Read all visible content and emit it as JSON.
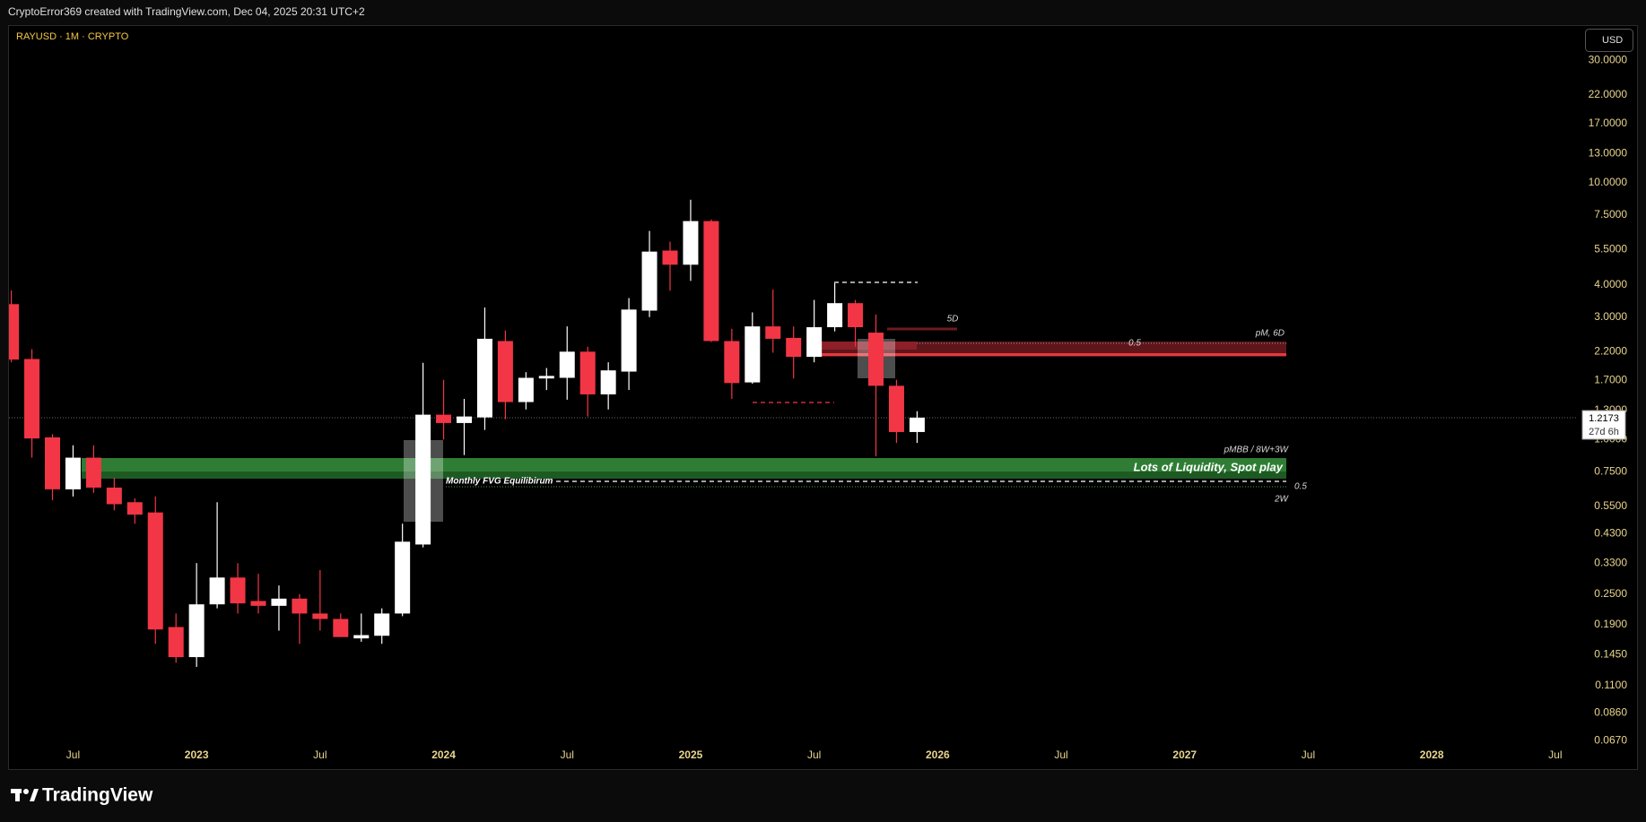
{
  "header": "CryptoError369 created with TradingView.com, Dec 04, 2025 20:31 UTC+2",
  "footer": "TradingView",
  "chart_data": {
    "type": "candlestick",
    "title": "RAYUSD · 1M · CRYPTO",
    "currency": "USD",
    "countdown": "27d 6h",
    "log_scale": true,
    "grid": false,
    "up_color": "#ffffff",
    "down_color": "#f23645",
    "categories": [
      "2022-04",
      "2022-05",
      "2022-06",
      "2022-07",
      "2022-08",
      "2022-09",
      "2022-10",
      "2022-11",
      "2022-12",
      "2023-01",
      "2023-02",
      "2023-03",
      "2023-04",
      "2023-05",
      "2023-06",
      "2023-07",
      "2023-08",
      "2023-09",
      "2023-10",
      "2023-11",
      "2023-12",
      "2024-01",
      "2024-02",
      "2024-03",
      "2024-04",
      "2024-05",
      "2024-06",
      "2024-07",
      "2024-08",
      "2024-09",
      "2024-10",
      "2024-11",
      "2024-12",
      "2025-01",
      "2025-02",
      "2025-03",
      "2025-04",
      "2025-05",
      "2025-06",
      "2025-07",
      "2025-08",
      "2025-09",
      "2025-10",
      "2025-11",
      "2025-12"
    ],
    "open": [
      3.37,
      2.06,
      1.02,
      0.64,
      0.85,
      0.65,
      0.57,
      0.52,
      0.186,
      0.142,
      0.228,
      0.29,
      0.235,
      0.225,
      0.24,
      0.21,
      0.2,
      0.168,
      0.172,
      0.21,
      0.39,
      1.25,
      1.16,
      1.22,
      2.42,
      1.4,
      1.73,
      1.74,
      2.2,
      1.5,
      1.84,
      3.18,
      5.45,
      4.8,
      7.1,
      2.42,
      1.67,
      2.76,
      2.49,
      2.1,
      2.74,
      3.4,
      2.61,
      1.62,
      1.07
    ],
    "high": [
      3.81,
      2.25,
      1.05,
      0.95,
      0.95,
      0.71,
      0.59,
      0.6,
      0.21,
      0.33,
      0.57,
      0.33,
      0.3,
      0.27,
      0.25,
      0.31,
      0.21,
      0.21,
      0.22,
      0.47,
      1.99,
      1.71,
      1.44,
      3.27,
      2.66,
      1.83,
      1.9,
      2.76,
      2.3,
      2.0,
      3.56,
      6.5,
      5.9,
      8.6,
      7.2,
      2.7,
      3.13,
      3.84,
      2.76,
      3.5,
      4.07,
      3.5,
      3.07,
      1.71,
      1.29
    ],
    "low": [
      2.0,
      0.85,
      0.58,
      0.6,
      0.62,
      0.53,
      0.47,
      0.16,
      0.135,
      0.13,
      0.22,
      0.21,
      0.21,
      0.18,
      0.16,
      0.18,
      0.17,
      0.163,
      0.16,
      0.205,
      0.38,
      1.0,
      0.87,
      1.09,
      1.2,
      1.31,
      1.56,
      1.43,
      1.23,
      1.31,
      1.56,
      3.0,
      3.8,
      4.15,
      2.4,
      1.44,
      1.65,
      2.18,
      1.73,
      2.0,
      2.64,
      2.3,
      0.86,
      0.97,
      0.97
    ],
    "close": [
      2.05,
      1.01,
      0.64,
      0.85,
      0.65,
      0.56,
      0.51,
      0.182,
      0.142,
      0.228,
      0.29,
      0.23,
      0.225,
      0.24,
      0.21,
      0.2,
      0.17,
      0.173,
      0.21,
      0.4,
      1.25,
      1.16,
      1.23,
      2.47,
      1.4,
      1.74,
      1.77,
      2.2,
      1.5,
      1.86,
      3.21,
      5.4,
      4.8,
      7.1,
      2.42,
      1.66,
      2.76,
      2.47,
      2.1,
      2.74,
      3.4,
      2.74,
      1.62,
      1.07,
      1.2173
    ],
    "ylim": [
      0.0646,
      41.2
    ],
    "yticks": [
      {
        "value": 30,
        "label": "30.0000"
      },
      {
        "value": 22,
        "label": "22.0000"
      },
      {
        "value": 17,
        "label": "17.0000"
      },
      {
        "value": 13,
        "label": "13.0000"
      },
      {
        "value": 10,
        "label": "10.0000"
      },
      {
        "value": 7.5,
        "label": "7.5000"
      },
      {
        "value": 5.5,
        "label": "5.5000"
      },
      {
        "value": 4,
        "label": "4.0000"
      },
      {
        "value": 3,
        "label": "3.0000"
      },
      {
        "value": 2.2,
        "label": "2.2000"
      },
      {
        "value": 1.7,
        "label": "1.7000"
      },
      {
        "value": 1.3,
        "label": "1.3000"
      },
      {
        "value": 1,
        "label": "1.0000"
      },
      {
        "value": 0.75,
        "label": "0.7500"
      },
      {
        "value": 0.55,
        "label": "0.5500"
      },
      {
        "value": 0.43,
        "label": "0.4300"
      },
      {
        "value": 0.33,
        "label": "0.3300"
      },
      {
        "value": 0.25,
        "label": "0.2500"
      },
      {
        "value": 0.19,
        "label": "0.1900"
      },
      {
        "value": 0.145,
        "label": "0.1450"
      },
      {
        "value": 0.11,
        "label": "0.1100"
      },
      {
        "value": 0.086,
        "label": "0.0860"
      },
      {
        "value": 0.067,
        "label": "0.0670"
      }
    ],
    "xticks": [
      {
        "value": "2022-07",
        "label": "Jul"
      },
      {
        "value": "2023-01",
        "label": "2023"
      },
      {
        "value": "2023-07",
        "label": "Jul"
      },
      {
        "value": "2024-01",
        "label": "2024"
      },
      {
        "value": "2024-07",
        "label": "Jul"
      },
      {
        "value": "2025-01",
        "label": "2025"
      },
      {
        "value": "2025-07",
        "label": "Jul"
      },
      {
        "value": "2026-01",
        "label": "2026"
      },
      {
        "value": "2026-07",
        "label": "Jul"
      },
      {
        "value": "2027-01",
        "label": "2027"
      },
      {
        "value": "2027-07",
        "label": "Jul"
      },
      {
        "value": "2028-01",
        "label": "2028"
      },
      {
        "value": "2028-07",
        "label": "Jul"
      }
    ],
    "annotations": [
      "5D",
      "0.5",
      "pM, 6D",
      "pMBB / 8W+3W",
      "Lots of Liquidity, Spot play",
      "Monthly FVG Equilibirum",
      "0.5",
      "2W"
    ]
  }
}
